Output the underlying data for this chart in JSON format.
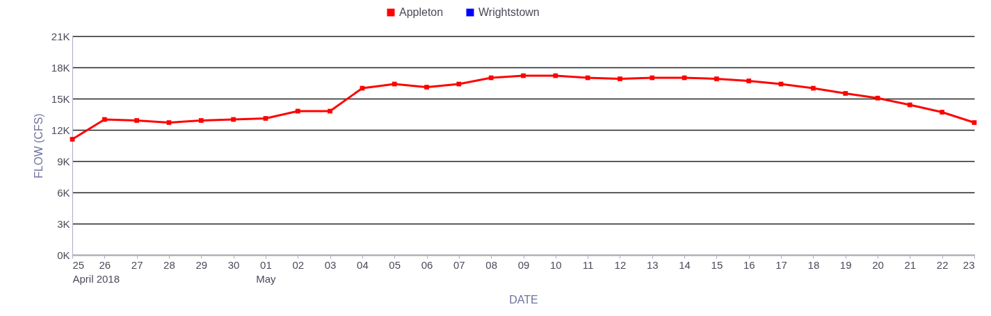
{
  "chart_data": {
    "type": "line",
    "xlabel": "DATE",
    "ylabel": "FLOW (CFS)",
    "x": [
      "2018-04-25",
      "2018-04-26",
      "2018-04-27",
      "2018-04-28",
      "2018-04-29",
      "2018-04-30",
      "2018-05-01",
      "2018-05-02",
      "2018-05-03",
      "2018-05-04",
      "2018-05-05",
      "2018-05-06",
      "2018-05-07",
      "2018-05-08",
      "2018-05-09",
      "2018-05-10",
      "2018-05-11",
      "2018-05-12",
      "2018-05-13",
      "2018-05-14",
      "2018-05-15",
      "2018-05-16",
      "2018-05-17",
      "2018-05-18",
      "2018-05-19",
      "2018-05-20",
      "2018-05-21",
      "2018-05-22",
      "2018-05-23"
    ],
    "series": [
      {
        "name": "Appleton",
        "color": "#ff0000",
        "values": [
          11100,
          13000,
          12900,
          12700,
          12900,
          13000,
          13100,
          13800,
          13800,
          16000,
          16400,
          16100,
          16400,
          17000,
          17200,
          17200,
          17000,
          16900,
          17000,
          17000,
          16900,
          16700,
          16400,
          16000,
          15500,
          15050,
          14400,
          13700,
          12700
        ]
      },
      {
        "name": "Wrightstown",
        "color": "#0000ff",
        "values": [
          null,
          null,
          null,
          null,
          null,
          null,
          null,
          null,
          null,
          null,
          null,
          null,
          null,
          null,
          null,
          null,
          null,
          null,
          null,
          null,
          null,
          null,
          null,
          null,
          null,
          null,
          null,
          null,
          null
        ]
      }
    ],
    "xlim": [
      "2018-04-25",
      "2018-05-23"
    ],
    "xticks": [
      {
        "value": "2018-04-25",
        "label": "25\nApril 2018"
      },
      {
        "value": "2018-04-26",
        "label": "26"
      },
      {
        "value": "2018-04-27",
        "label": "27"
      },
      {
        "value": "2018-04-28",
        "label": "28"
      },
      {
        "value": "2018-04-29",
        "label": "29"
      },
      {
        "value": "2018-04-30",
        "label": "30"
      },
      {
        "value": "2018-05-01",
        "label": "01\nMay"
      },
      {
        "value": "2018-05-02",
        "label": "02"
      },
      {
        "value": "2018-05-03",
        "label": "03"
      },
      {
        "value": "2018-05-04",
        "label": "04"
      },
      {
        "value": "2018-05-05",
        "label": "05"
      },
      {
        "value": "2018-05-06",
        "label": "06"
      },
      {
        "value": "2018-05-07",
        "label": "07"
      },
      {
        "value": "2018-05-08",
        "label": "08"
      },
      {
        "value": "2018-05-09",
        "label": "09"
      },
      {
        "value": "2018-05-10",
        "label": "10"
      },
      {
        "value": "2018-05-11",
        "label": "11"
      },
      {
        "value": "2018-05-12",
        "label": "12"
      },
      {
        "value": "2018-05-13",
        "label": "13"
      },
      {
        "value": "2018-05-14",
        "label": "14"
      },
      {
        "value": "2018-05-15",
        "label": "15"
      },
      {
        "value": "2018-05-16",
        "label": "16"
      },
      {
        "value": "2018-05-17",
        "label": "17"
      },
      {
        "value": "2018-05-18",
        "label": "18"
      },
      {
        "value": "2018-05-19",
        "label": "19"
      },
      {
        "value": "2018-05-20",
        "label": "20"
      },
      {
        "value": "2018-05-21",
        "label": "21"
      },
      {
        "value": "2018-05-22",
        "label": "22"
      },
      {
        "value": "2018-05-23",
        "label": "23"
      }
    ],
    "ylim": [
      0,
      21000
    ],
    "yticks": [
      {
        "value": 0,
        "label": "0K"
      },
      {
        "value": 3000,
        "label": "3K"
      },
      {
        "value": 6000,
        "label": "6K"
      },
      {
        "value": 9000,
        "label": "9K"
      },
      {
        "value": 12000,
        "label": "12K"
      },
      {
        "value": 15000,
        "label": "15K"
      },
      {
        "value": 18000,
        "label": "18K"
      },
      {
        "value": 21000,
        "label": "21K"
      }
    ],
    "grid": "y",
    "legend": "top",
    "marker": "square",
    "line_style": "solid"
  }
}
